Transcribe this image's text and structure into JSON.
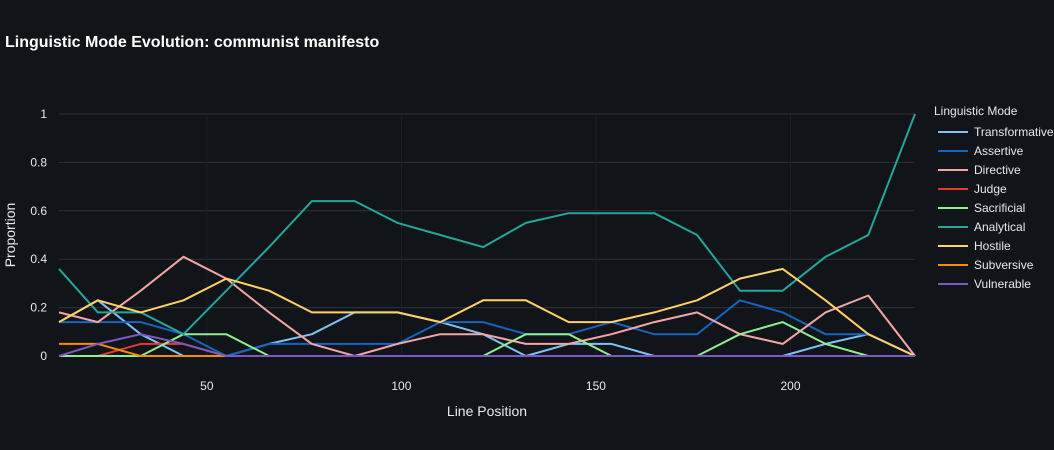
{
  "chart_data": {
    "type": "line",
    "title": "Linguistic Mode Evolution: communist manifesto",
    "xlabel": "Line Position",
    "ylabel": "Proportion",
    "xlim": [
      12,
      232
    ],
    "ylim": [
      0,
      1
    ],
    "xticks": [
      50,
      100,
      150,
      200
    ],
    "yticks": [
      0,
      0.2,
      0.4,
      0.6,
      0.8,
      1
    ],
    "ytick_labels": [
      "0",
      "0.2",
      "0.4",
      "0.6",
      "0.8",
      "1"
    ],
    "legend_title": "Linguistic Mode",
    "x": [
      12,
      22,
      33,
      44,
      55,
      66,
      77,
      88,
      99,
      110,
      121,
      132,
      143,
      154,
      165,
      176,
      187,
      198,
      209,
      220,
      232
    ],
    "series": [
      {
        "name": "Transformative",
        "color": "#7ec3f7",
        "values": [
          0.14,
          0.23,
          0.09,
          0.0,
          0.0,
          0.05,
          0.09,
          0.18,
          0.18,
          0.14,
          0.09,
          0.0,
          0.05,
          0.05,
          0.0,
          0.0,
          0.0,
          0.0,
          0.05,
          0.09,
          0.0
        ]
      },
      {
        "name": "Assertive",
        "color": "#1565c0",
        "values": [
          0.14,
          0.14,
          0.14,
          0.09,
          0.0,
          0.05,
          0.05,
          0.05,
          0.05,
          0.14,
          0.14,
          0.09,
          0.09,
          0.14,
          0.09,
          0.09,
          0.23,
          0.18,
          0.09,
          0.09,
          0.0
        ]
      },
      {
        "name": "Directive",
        "color": "#f4a6a6",
        "values": [
          0.18,
          0.14,
          0.27,
          0.41,
          0.32,
          0.18,
          0.05,
          0.0,
          0.05,
          0.09,
          0.09,
          0.05,
          0.05,
          0.09,
          0.14,
          0.18,
          0.09,
          0.05,
          0.18,
          0.25,
          0.0
        ]
      },
      {
        "name": "Judge",
        "color": "#e53935",
        "values": [
          0.0,
          0.0,
          0.05,
          0.05,
          0.0,
          0.0,
          0.0,
          0.0,
          0.0,
          0.0,
          0.0,
          0.0,
          0.0,
          0.0,
          0.0,
          0.0,
          0.0,
          0.0,
          0.0,
          0.0,
          0.0
        ]
      },
      {
        "name": "Sacrificial",
        "color": "#90ee90",
        "values": [
          0.0,
          0.0,
          0.0,
          0.09,
          0.09,
          0.0,
          0.0,
          0.0,
          0.0,
          0.0,
          0.0,
          0.09,
          0.09,
          0.0,
          0.0,
          0.0,
          0.09,
          0.14,
          0.05,
          0.0,
          0.0
        ]
      },
      {
        "name": "Analytical",
        "color": "#26a69a",
        "values": [
          0.36,
          0.18,
          0.18,
          0.09,
          0.27,
          0.45,
          0.64,
          0.64,
          0.55,
          0.5,
          0.45,
          0.55,
          0.59,
          0.59,
          0.59,
          0.5,
          0.27,
          0.27,
          0.41,
          0.5,
          1.0
        ]
      },
      {
        "name": "Hostile",
        "color": "#ffd166",
        "values": [
          0.14,
          0.23,
          0.18,
          0.23,
          0.32,
          0.27,
          0.18,
          0.18,
          0.18,
          0.14,
          0.23,
          0.23,
          0.14,
          0.14,
          0.18,
          0.23,
          0.32,
          0.36,
          0.23,
          0.09,
          0.0
        ]
      },
      {
        "name": "Subversive",
        "color": "#fb8c00",
        "values": [
          0.05,
          0.05,
          0.0,
          0.0,
          0.0,
          0.0,
          0.0,
          0.0,
          0.0,
          0.0,
          0.0,
          0.0,
          0.0,
          0.0,
          0.0,
          0.0,
          0.0,
          0.0,
          0.0,
          0.0,
          0.0
        ]
      },
      {
        "name": "Vulnerable",
        "color": "#7e57c2",
        "values": [
          0.0,
          0.05,
          0.09,
          0.05,
          0.0,
          0.0,
          0.0,
          0.0,
          0.0,
          0.0,
          0.0,
          0.0,
          0.0,
          0.0,
          0.0,
          0.0,
          0.0,
          0.0,
          0.0,
          0.0,
          0.0
        ]
      }
    ]
  }
}
